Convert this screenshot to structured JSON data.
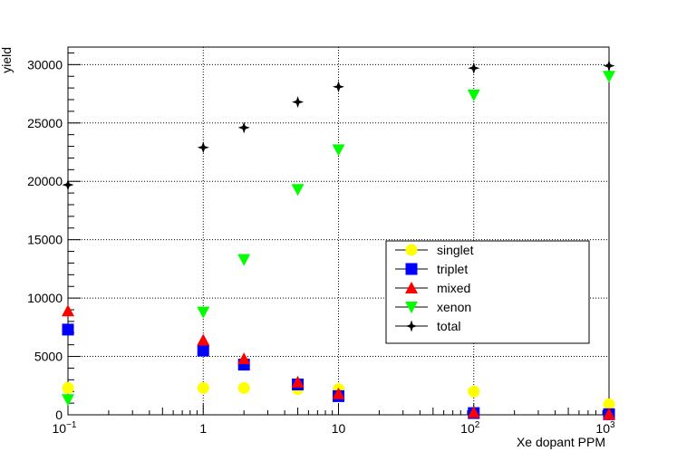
{
  "chart_data": {
    "type": "scatter",
    "xlabel": "Xe dopant PPM",
    "ylabel": "yield",
    "xscale": "log",
    "xlim": [
      0.1,
      1000
    ],
    "ylim": [
      0,
      31500
    ],
    "grid": true,
    "legend_position": "center-right",
    "x_ticks": [
      {
        "value": 0.1,
        "base": "10",
        "exp": "−1"
      },
      {
        "value": 1,
        "base": "1",
        "exp": ""
      },
      {
        "value": 10,
        "base": "10",
        "exp": ""
      },
      {
        "value": 100,
        "base": "10",
        "exp": "2"
      },
      {
        "value": 1000,
        "base": "10",
        "exp": "3"
      }
    ],
    "y_ticks": [
      {
        "value": 0,
        "label": "0"
      },
      {
        "value": 5000,
        "label": "5000"
      },
      {
        "value": 10000,
        "label": "10000"
      },
      {
        "value": 15000,
        "label": "15000"
      },
      {
        "value": 20000,
        "label": "20000"
      },
      {
        "value": 25000,
        "label": "25000"
      },
      {
        "value": 30000,
        "label": "30000"
      }
    ],
    "series": [
      {
        "name": "singlet",
        "marker": "circle",
        "color": "#ffff00",
        "points": [
          [
            0.1,
            2300
          ],
          [
            1,
            2300
          ],
          [
            2,
            2300
          ],
          [
            5,
            2200
          ],
          [
            10,
            2200
          ],
          [
            100,
            2000
          ],
          [
            1000,
            900
          ]
        ]
      },
      {
        "name": "triplet",
        "marker": "square",
        "color": "#0000ff",
        "points": [
          [
            0.1,
            7300
          ],
          [
            1,
            5500
          ],
          [
            2,
            4300
          ],
          [
            5,
            2600
          ],
          [
            10,
            1600
          ],
          [
            100,
            150
          ],
          [
            1000,
            50
          ]
        ]
      },
      {
        "name": "mixed",
        "marker": "triangle-up",
        "color": "#ff0000",
        "points": [
          [
            0.1,
            8900
          ],
          [
            1,
            6400
          ],
          [
            2,
            4800
          ],
          [
            5,
            2800
          ],
          [
            10,
            1800
          ],
          [
            100,
            200
          ],
          [
            1000,
            50
          ]
        ]
      },
      {
        "name": "xenon",
        "marker": "triangle-down",
        "color": "#00ff00",
        "points": [
          [
            0.1,
            1300
          ],
          [
            1,
            8800
          ],
          [
            2,
            13300
          ],
          [
            5,
            19300
          ],
          [
            10,
            22700
          ],
          [
            100,
            27400
          ],
          [
            1000,
            29000
          ]
        ]
      },
      {
        "name": "total",
        "marker": "star",
        "color": "#000000",
        "points": [
          [
            0.1,
            19700
          ],
          [
            1,
            22900
          ],
          [
            2,
            24600
          ],
          [
            5,
            26800
          ],
          [
            10,
            28100
          ],
          [
            100,
            29700
          ],
          [
            1000,
            29900
          ]
        ]
      }
    ]
  }
}
